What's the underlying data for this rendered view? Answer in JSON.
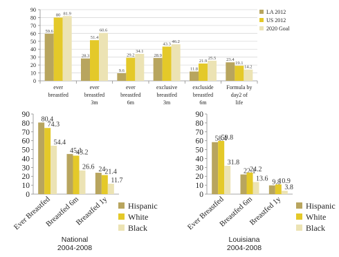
{
  "colors": {
    "series_1": "#b8a55e",
    "series_2": "#e4c929",
    "series_3": "#ece3b4",
    "axis": "#8a8a8a",
    "grid": "#d9d9d9"
  },
  "chart_data": [
    {
      "type": "bar",
      "title": "",
      "xlabel": "",
      "ylabel": "",
      "ylim": [
        0,
        90
      ],
      "yticks": [
        0,
        10,
        20,
        30,
        40,
        50,
        60,
        70,
        80,
        90
      ],
      "grid": true,
      "legend_position": "right",
      "categories": [
        "ever breastfed",
        "ever breastfed 3m",
        "ever breastfed 6m",
        "exclusive breastfed 3m",
        "excluside breastfed 6m",
        "Formula by day2 of life"
      ],
      "series": [
        {
          "name": "LA 2012",
          "values": [
            59.6,
            28.3,
            9.6,
            28.9,
            11.8,
            23.4
          ],
          "labels": [
            "59.6",
            "28.3",
            "9.6",
            "28.9",
            "11.8",
            "23.4"
          ]
        },
        {
          "name": "US 2012",
          "values": [
            80,
            51.4,
            29.2,
            43.3,
            21.9,
            19.1
          ],
          "labels": [
            "80",
            "51.4",
            "29.2",
            "43.3",
            "21.9",
            "19.1"
          ]
        },
        {
          "name": "2020 Goal",
          "values": [
            81.9,
            60.6,
            34.1,
            46.2,
            25.5,
            14.2
          ],
          "labels": [
            "81.9",
            "60.6",
            "34.1",
            "46.2",
            "25.5",
            "14.2"
          ]
        }
      ]
    },
    {
      "type": "bar",
      "title": "National\n2004-2008",
      "xlabel": "",
      "ylabel": "",
      "ylim": [
        0,
        90
      ],
      "yticks": [
        0,
        10,
        20,
        30,
        40,
        50,
        60,
        70,
        80,
        90
      ],
      "grid": false,
      "legend_position": "right",
      "categories": [
        "Ever Breastfed",
        "Breastfed 6m",
        "Breastfed 1y"
      ],
      "series": [
        {
          "name": "Hispanic",
          "values": [
            80.4,
            45.1,
            24
          ],
          "labels": [
            "80.4",
            "45.1",
            "24"
          ]
        },
        {
          "name": "White",
          "values": [
            74.3,
            43.2,
            21.4
          ],
          "labels": [
            "74.3",
            "43.2",
            "21.4"
          ]
        },
        {
          "name": "Black",
          "values": [
            54.4,
            26.6,
            11.7
          ],
          "labels": [
            "54.4",
            "26.6",
            "11.7"
          ]
        }
      ]
    },
    {
      "type": "bar",
      "title": "Louisiana\n2004-2008",
      "xlabel": "",
      "ylabel": "",
      "ylim": [
        0,
        90
      ],
      "yticks": [
        0,
        10,
        20,
        30,
        40,
        50,
        60,
        70,
        80,
        90
      ],
      "grid": false,
      "legend_position": "right",
      "categories": [
        "Ever Breastfed",
        "Breastfed 6m",
        "Breastfed 1y"
      ],
      "series": [
        {
          "name": "Hispanic",
          "values": [
            58.4,
            22.1,
            9.8
          ],
          "labels": [
            "58.4",
            "22.1",
            "9.8"
          ]
        },
        {
          "name": "White",
          "values": [
            59.8,
            24.2,
            10.9
          ],
          "labels": [
            "59.8",
            "24.2",
            "10.9"
          ]
        },
        {
          "name": "Black",
          "values": [
            31.8,
            13.6,
            3.8
          ],
          "labels": [
            "31.8",
            "13.6",
            "3.8"
          ]
        }
      ]
    }
  ]
}
